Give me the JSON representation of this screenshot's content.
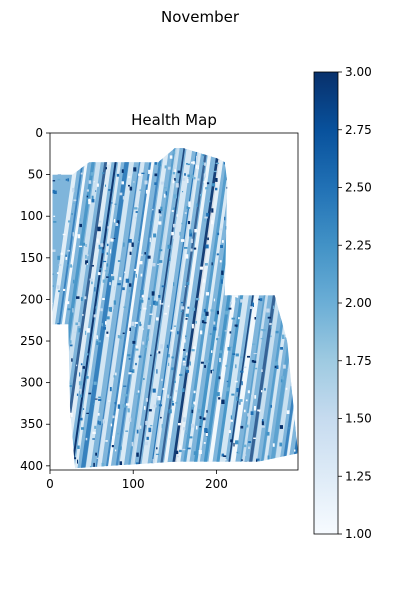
{
  "figure": {
    "suptitle": "November"
  },
  "chart_data": {
    "type": "heatmap",
    "title": "Health Map",
    "xlabel": "",
    "ylabel": "",
    "x_range": [
      0,
      298
    ],
    "y_range": [
      0,
      405
    ],
    "y_inverted": true,
    "x_ticks": [
      0,
      100,
      200
    ],
    "y_ticks": [
      0,
      50,
      100,
      150,
      200,
      250,
      300,
      350,
      400
    ],
    "colormap": "Blues",
    "colorbar": {
      "min": 1.0,
      "max": 3.0,
      "ticks": [
        "1.00",
        "1.25",
        "1.50",
        "1.75",
        "2.00",
        "2.25",
        "2.50",
        "2.75",
        "3.00"
      ],
      "colors": {
        "low": "#f7fbff",
        "mid": "#6baed6",
        "high": "#08306b"
      }
    },
    "field_outline": [
      [
        3,
        50
      ],
      [
        27,
        50
      ],
      [
        47,
        35
      ],
      [
        130,
        35
      ],
      [
        150,
        18
      ],
      [
        160,
        18
      ],
      [
        200,
        30
      ],
      [
        210,
        35
      ],
      [
        213,
        60
      ],
      [
        210,
        195
      ],
      [
        270,
        195
      ],
      [
        285,
        250
      ],
      [
        298,
        385
      ],
      [
        250,
        395
      ],
      [
        150,
        395
      ],
      [
        30,
        403
      ],
      [
        24,
        330
      ],
      [
        22,
        230
      ],
      [
        3,
        230
      ]
    ],
    "stripes": {
      "count": 26,
      "orientation_deg": -78
    },
    "dominant_value": 2.0
  }
}
